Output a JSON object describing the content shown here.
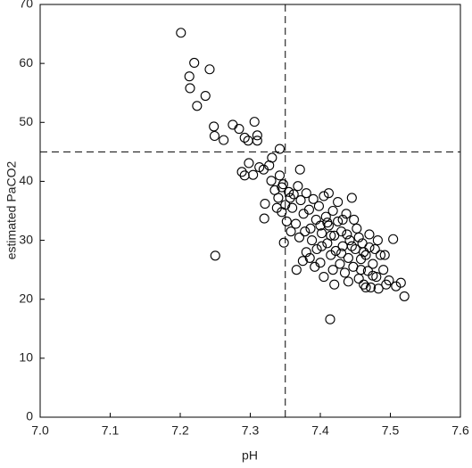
{
  "chart_data": {
    "type": "scatter",
    "x_label": "pH",
    "y_label": "estimated PaCO2",
    "xlim": [
      7.0,
      7.6
    ],
    "ylim": [
      0,
      70
    ],
    "xticks": [
      {
        "value": 7.0,
        "label": "7.0"
      },
      7.1,
      7.2,
      7.3,
      7.4,
      7.5,
      7.6
    ],
    "yticks": [
      0,
      10,
      20,
      30,
      40,
      50,
      60,
      70
    ],
    "reference_x": 7.35,
    "reference_y": 45,
    "color": "#000000",
    "x": [
      7.201,
      7.22,
      7.213,
      7.214,
      7.224,
      7.242,
      7.236,
      7.248,
      7.249,
      7.262,
      7.275,
      7.284,
      7.292,
      7.297,
      7.306,
      7.31,
      7.31,
      7.342,
      7.288,
      7.292,
      7.298,
      7.304,
      7.313,
      7.319,
      7.331,
      7.327,
      7.25,
      7.321,
      7.32,
      7.371,
      7.414,
      7.504,
      7.33,
      7.335,
      7.34,
      7.345,
      7.35,
      7.355,
      7.36,
      7.362,
      7.368,
      7.372,
      7.376,
      7.38,
      7.384,
      7.345,
      7.352,
      7.358,
      7.348,
      7.365,
      7.338,
      7.37,
      7.366,
      7.375,
      7.386,
      7.39,
      7.394,
      7.398,
      7.402,
      7.405,
      7.408,
      7.41,
      7.412,
      7.415,
      7.418,
      7.42,
      7.422,
      7.425,
      7.428,
      7.43,
      7.432,
      7.435,
      7.437,
      7.44,
      7.442,
      7.445,
      7.447,
      7.45,
      7.452,
      7.455,
      7.458,
      7.46,
      7.462,
      7.465,
      7.468,
      7.47,
      7.472,
      7.475,
      7.478,
      7.48,
      7.483,
      7.486,
      7.49,
      7.494,
      7.498,
      7.515,
      7.52,
      7.508,
      7.395,
      7.4,
      7.405,
      7.388,
      7.392,
      7.38,
      7.415,
      7.418,
      7.425,
      7.412,
      7.4,
      7.432,
      7.438,
      7.445,
      7.448,
      7.455,
      7.458,
      7.462,
      7.47,
      7.475,
      7.43,
      7.42,
      7.44,
      7.41,
      7.402,
      7.385,
      7.378,
      7.465,
      7.482,
      7.492,
      7.357,
      7.347,
      7.342
    ],
    "values": [
      65.2,
      60.1,
      57.8,
      55.8,
      52.8,
      59.0,
      54.5,
      49.3,
      47.7,
      47.0,
      49.6,
      48.9,
      47.4,
      46.9,
      50.1,
      47.8,
      46.9,
      45.5,
      41.6,
      41.0,
      43.1,
      41.1,
      42.4,
      42.0,
      44.0,
      42.7,
      27.4,
      36.2,
      33.7,
      42.0,
      16.6,
      30.2,
      40.1,
      38.5,
      37.2,
      39.0,
      36.0,
      38.2,
      35.5,
      37.8,
      39.2,
      36.8,
      34.5,
      38.0,
      35.2,
      34.8,
      33.2,
      31.5,
      29.6,
      32.8,
      35.5,
      30.5,
      25.0,
      26.5,
      32.0,
      37.0,
      33.5,
      35.8,
      31.2,
      37.5,
      34.0,
      29.5,
      32.5,
      27.5,
      35.0,
      30.8,
      28.2,
      33.2,
      26.0,
      31.5,
      29.0,
      24.5,
      34.5,
      27.0,
      30.0,
      37.2,
      25.5,
      28.5,
      32.0,
      23.5,
      26.8,
      29.5,
      22.5,
      27.5,
      24.8,
      31.0,
      22.0,
      26.0,
      28.5,
      23.8,
      21.8,
      27.5,
      25.0,
      22.5,
      23.2,
      22.8,
      20.5,
      22.2,
      28.5,
      26.2,
      23.8,
      30.0,
      25.5,
      28.0,
      30.8,
      25.0,
      36.5,
      38.0,
      32.5,
      33.5,
      31.0,
      29.0,
      33.5,
      30.5,
      25.0,
      28.0,
      28.8,
      24.0,
      27.8,
      22.5,
      23.0,
      33.0,
      29.0,
      27.0,
      31.5,
      22.0,
      30.0,
      27.5,
      37.2,
      39.5,
      41.0
    ]
  }
}
